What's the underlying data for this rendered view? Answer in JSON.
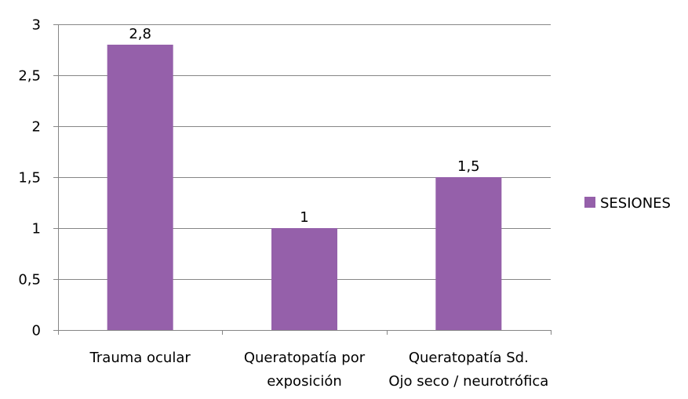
{
  "chart_data": {
    "type": "bar",
    "categories": [
      [
        "Trauma ocular"
      ],
      [
        "Queratopatía por",
        "exposición"
      ],
      [
        "Queratopatía Sd.",
        "Ojo seco / neurotrófica"
      ]
    ],
    "series": [
      {
        "name": "SESIONES",
        "values": [
          2.8,
          1,
          1.5
        ]
      }
    ],
    "data_labels": [
      "2,8",
      "1",
      "1,5"
    ],
    "ylim": [
      0,
      3
    ],
    "yticks": [
      0,
      0.5,
      1,
      1.5,
      2,
      2.5,
      3
    ],
    "ytick_labels": [
      "0",
      "0,5",
      "1",
      "1,5",
      "2",
      "2,5",
      "3"
    ],
    "grid": true,
    "legend_position": "right",
    "colors": {
      "bar": "#9560aa",
      "grid": "#868686",
      "axis": "#868686"
    }
  }
}
